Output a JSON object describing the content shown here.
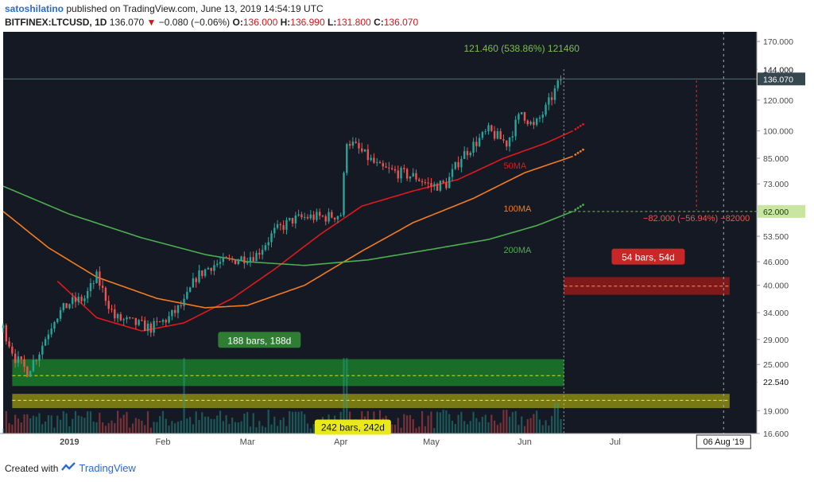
{
  "header": {
    "author": "satoshilatino",
    "published": "published on TradingView.com, June 13, 2019 14:54:19 UTC",
    "symbol": "BITFINEX:LTCUSD, 1D",
    "price": "136.070",
    "change_arrow": "▼",
    "change": "−0.080 (−0.06%)",
    "o_label": "O:",
    "o": "136.000",
    "h_label": "H:",
    "h": "136.990",
    "l_label": "L:",
    "l": "131.800",
    "c_label": "C:",
    "c": "136.070"
  },
  "footer": {
    "created_with": "Created with",
    "brand": "TradingView"
  },
  "colors": {
    "bg": "#151924",
    "up": "#26a69a",
    "down": "#ef5350",
    "ma50": "#e0191b",
    "ma100": "#f57c20",
    "ma200": "#4caf50",
    "price_tag": "#37474f",
    "green_box": "#1b8a2a",
    "red_box": "#8b1a1a",
    "yellow_box": "#9a9a10"
  },
  "chart_data": {
    "type": "candlestick",
    "symbol": "BITFINEX:LTCUSD",
    "interval": "1D",
    "y_scale": "log",
    "ylim": [
      16.6,
      180
    ],
    "xlim": [
      "2018-12-10",
      "2019-08-17"
    ],
    "y_ticks": [
      "170.000",
      "144.000",
      "120.000",
      "100.000",
      "85.000",
      "73.000",
      "62.000",
      "53.500",
      "46.000",
      "40.000",
      "34.000",
      "29.000",
      "25.000",
      "22.540",
      "19.000",
      "16.600"
    ],
    "x_ticks": [
      {
        "date": "2019-01-01",
        "label": "2019"
      },
      {
        "date": "2019-02-01",
        "label": "Feb"
      },
      {
        "date": "2019-03-01",
        "label": "Mar"
      },
      {
        "date": "2019-04-01",
        "label": "Apr"
      },
      {
        "date": "2019-05-01",
        "label": "May"
      },
      {
        "date": "2019-06-01",
        "label": "Jun"
      },
      {
        "date": "2019-07-01",
        "label": "Jul"
      }
    ],
    "crosshair_date_label": "06 Aug '19",
    "crosshair_date": "2019-08-06",
    "last_price": "136.070",
    "price_close_series": {
      "dates": [
        "2018-12-10",
        "2018-12-14",
        "2018-12-18",
        "2018-12-22",
        "2018-12-27",
        "2019-01-01",
        "2019-01-06",
        "2019-01-10",
        "2019-01-16",
        "2019-01-22",
        "2019-01-28",
        "2019-02-03",
        "2019-02-08",
        "2019-02-12",
        "2019-02-17",
        "2019-02-22",
        "2019-02-27",
        "2019-03-04",
        "2019-03-10",
        "2019-03-16",
        "2019-03-21",
        "2019-03-27",
        "2019-04-01",
        "2019-04-03",
        "2019-04-08",
        "2019-04-14",
        "2019-04-20",
        "2019-04-26",
        "2019-05-01",
        "2019-05-06",
        "2019-05-11",
        "2019-05-15",
        "2019-05-20",
        "2019-05-26",
        "2019-05-31",
        "2019-06-04",
        "2019-06-08",
        "2019-06-13"
      ],
      "values": [
        31,
        26,
        24,
        27,
        33,
        36,
        37,
        42,
        33,
        32,
        31,
        33,
        36,
        42,
        45,
        46,
        47,
        48,
        55,
        59,
        60,
        60,
        61,
        95,
        88,
        80,
        78,
        76,
        72,
        73,
        86,
        92,
        100,
        93,
        112,
        102,
        114,
        136
      ]
    },
    "series": [
      {
        "name": "50MA",
        "dates": [
          "2018-12-28",
          "2019-01-10",
          "2019-01-25",
          "2019-02-08",
          "2019-02-24",
          "2019-03-10",
          "2019-03-25",
          "2019-04-08",
          "2019-04-25",
          "2019-05-10",
          "2019-05-25",
          "2019-06-08",
          "2019-06-17"
        ],
        "values": [
          41,
          33,
          30.5,
          32,
          37,
          44,
          54,
          64,
          70,
          75,
          85,
          93,
          100
        ]
      },
      {
        "name": "100MA",
        "dates": [
          "2018-12-10",
          "2018-12-25",
          "2019-01-10",
          "2019-01-30",
          "2019-02-15",
          "2019-03-01",
          "2019-03-20",
          "2019-04-08",
          "2019-04-25",
          "2019-05-15",
          "2019-06-01",
          "2019-06-17"
        ],
        "values": [
          62,
          50,
          42,
          37,
          35,
          35.5,
          40,
          49,
          58,
          67,
          78,
          86
        ]
      },
      {
        "name": "200MA",
        "dates": [
          "2018-12-10",
          "2019-01-01",
          "2019-01-25",
          "2019-02-15",
          "2019-03-01",
          "2019-03-20",
          "2019-04-10",
          "2019-05-01",
          "2019-05-20",
          "2019-06-05",
          "2019-06-17"
        ],
        "values": [
          72,
          61,
          53,
          48,
          46,
          45,
          46.5,
          49.5,
          52.5,
          57,
          62
        ]
      }
    ],
    "annotations": [
      {
        "text": "121.460 (538.86%) 121460",
        "kind": "measure-up"
      },
      {
        "text": "−82.000 (−56.94%) −82000",
        "kind": "measure-down"
      },
      {
        "text": "188 bars, 188d",
        "kind": "range-green"
      },
      {
        "text": "54 bars, 54d",
        "kind": "range-red"
      },
      {
        "text": "242 bars, 242d",
        "kind": "range-yellow"
      },
      {
        "text": "50MA",
        "kind": "ma-label"
      },
      {
        "text": "100MA",
        "kind": "ma-label"
      },
      {
        "text": "200MA",
        "kind": "ma-label"
      }
    ],
    "price_levels": {
      "top": "144.000",
      "current": "136.070",
      "target": "62.000",
      "base": "22.540"
    }
  }
}
